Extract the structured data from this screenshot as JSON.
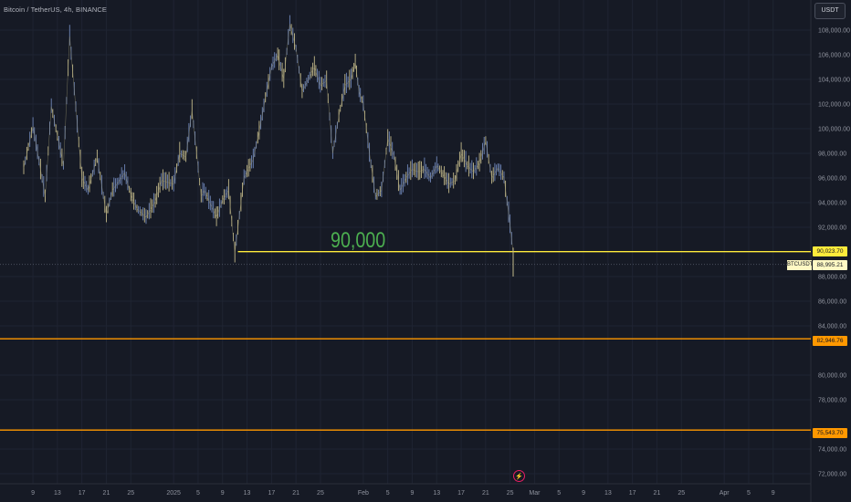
{
  "title": "Bitcoin / TetherUS, 4h, BINANCE",
  "currency_button": "USDT",
  "annotation": "90,000",
  "event_icon": "lightning-icon",
  "symbol_tag": "BTCUSDT",
  "price_labels": {
    "support_90k": "90,023.70",
    "current": "88,995.21",
    "support_83k": "82,946.76",
    "support_75k": "75,543.70"
  },
  "colors": {
    "background": "#161a25",
    "yellow_line": "#ffeb3b",
    "orange_line": "#ff9800",
    "annotation": "#4caf50",
    "candles": "#a89f7a"
  },
  "chart_data": {
    "type": "line",
    "title": "Bitcoin / TetherUS, 4h, BINANCE",
    "ylim": [
      71000,
      110000
    ],
    "y_ticks": [
      {
        "value": 108000,
        "label": "108,000.00"
      },
      {
        "value": 106000,
        "label": "106,000.00"
      },
      {
        "value": 104000,
        "label": "104,000.00"
      },
      {
        "value": 102000,
        "label": "102,000.00"
      },
      {
        "value": 100000,
        "label": "100,000.00"
      },
      {
        "value": 98000,
        "label": "98,000.00"
      },
      {
        "value": 96000,
        "label": "96,000.00"
      },
      {
        "value": 94000,
        "label": "94,000.00"
      },
      {
        "value": 92000,
        "label": "92,000.00"
      },
      {
        "value": 88000,
        "label": "88,000.00"
      },
      {
        "value": 86000,
        "label": "86,000.00"
      },
      {
        "value": 84000,
        "label": "84,000.00"
      },
      {
        "value": 80000,
        "label": "80,000.00"
      },
      {
        "value": 78000,
        "label": "78,000.00"
      },
      {
        "value": 74000,
        "label": "74,000.00"
      },
      {
        "value": 72000,
        "label": "72,000.00"
      }
    ],
    "x_ticks": [
      {
        "day": 9,
        "label": "9"
      },
      {
        "day": 13,
        "label": "13"
      },
      {
        "day": 17,
        "label": "17"
      },
      {
        "day": 21,
        "label": "21"
      },
      {
        "day": 25,
        "label": "25"
      },
      {
        "day": 32,
        "label": "2025"
      },
      {
        "day": 36,
        "label": "5"
      },
      {
        "day": 40,
        "label": "9"
      },
      {
        "day": 44,
        "label": "13"
      },
      {
        "day": 48,
        "label": "17"
      },
      {
        "day": 52,
        "label": "21"
      },
      {
        "day": 56,
        "label": "25"
      },
      {
        "day": 63,
        "label": "Feb"
      },
      {
        "day": 67,
        "label": "5"
      },
      {
        "day": 71,
        "label": "9"
      },
      {
        "day": 75,
        "label": "13"
      },
      {
        "day": 79,
        "label": "17"
      },
      {
        "day": 83,
        "label": "21"
      },
      {
        "day": 87,
        "label": "25"
      },
      {
        "day": 91,
        "label": "Mar"
      },
      {
        "day": 95,
        "label": "5"
      },
      {
        "day": 99,
        "label": "9"
      },
      {
        "day": 103,
        "label": "13"
      },
      {
        "day": 107,
        "label": "17"
      },
      {
        "day": 111,
        "label": "21"
      },
      {
        "day": 115,
        "label": "25"
      },
      {
        "day": 122,
        "label": "Apr"
      },
      {
        "day": 126,
        "label": "5"
      },
      {
        "day": 130,
        "label": "9"
      }
    ],
    "series": [
      {
        "x": [
          7.5,
          9,
          11,
          12,
          14,
          15,
          17,
          18,
          19.5,
          21,
          22,
          24,
          25,
          26,
          27.5,
          29,
          30,
          32,
          33,
          34,
          35,
          36.5,
          37,
          39,
          40,
          41,
          42,
          43.5,
          45,
          46,
          47,
          48,
          49,
          50,
          51,
          52,
          53,
          54,
          55,
          56,
          57,
          58,
          59,
          60,
          61,
          61.7,
          62.3,
          63,
          64,
          65,
          66,
          67,
          68,
          69,
          70,
          71,
          72,
          73,
          74,
          75,
          76,
          77,
          78,
          79,
          80,
          81,
          82,
          83,
          84,
          85,
          86,
          87,
          87.5
        ],
        "y": [
          96800,
          100200,
          94500,
          101800,
          97000,
          107500,
          96000,
          95000,
          97700,
          93000,
          95000,
          96400,
          94600,
          93500,
          92800,
          94100,
          95800,
          95500,
          98000,
          97700,
          101500,
          94500,
          95000,
          92800,
          94200,
          95000,
          89900,
          96000,
          97500,
          99800,
          102500,
          105000,
          106000,
          104000,
          108500,
          106500,
          103000,
          104000,
          105000,
          103500,
          103900,
          98000,
          101000,
          103500,
          104000,
          105400,
          103000,
          102000,
          98000,
          94500,
          95000,
          99200,
          97800,
          95000,
          96000,
          96700,
          96500,
          96700,
          96000,
          97000,
          96300,
          95500,
          95800,
          98000,
          97000,
          96500,
          97200,
          99000,
          96000,
          96800,
          96000,
          92200,
          89900
        ]
      }
    ],
    "horizontal_lines": [
      {
        "value": 90023.7,
        "color": "#ffeb3b",
        "label": "90,023.70",
        "from_day": 44
      },
      {
        "value": 88995.21,
        "color": "#4a4f5c",
        "label": "88,995.21",
        "from_day": 0
      },
      {
        "value": 82946.76,
        "color": "#ff9800",
        "label": "82,946.76",
        "from_day": 0
      },
      {
        "value": 75543.7,
        "color": "#ff9800",
        "label": "75,543.70",
        "from_day": 0
      }
    ]
  }
}
